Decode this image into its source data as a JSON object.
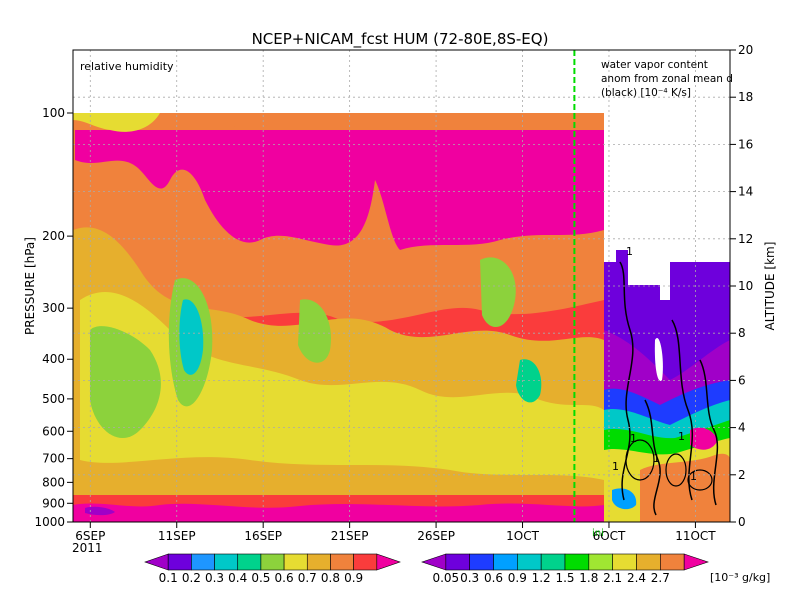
{
  "chart_data": {
    "type": "heatmap",
    "title": "NCEP+NICAM_fcst HUM (72-80E,8S-EQ)",
    "panel_left_label": "relative humidity",
    "panel_right_label": "water vapor content anom from zonal mean dh(black) [10⁻⁴ K/s]",
    "ylabel_left": "PRESSURE [hPa]",
    "ylabel_right": "ALTITUDE [km]",
    "y_left_ticks": [
      "100",
      "200",
      "300",
      "400",
      "500",
      "600",
      "700",
      "800",
      "900",
      "1000"
    ],
    "y_left_values": [
      100,
      200,
      300,
      400,
      500,
      600,
      700,
      800,
      900,
      1000
    ],
    "y_right_ticks": [
      "0",
      "2",
      "4",
      "6",
      "8",
      "10",
      "12",
      "14",
      "16",
      "18",
      "20"
    ],
    "y_right_range": [
      0,
      20
    ],
    "x_ticks": [
      "6SEP",
      "11SEP",
      "16SEP",
      "21SEP",
      "26SEP",
      "1OCT",
      "6OCT",
      "11OCT"
    ],
    "x_year_label": "2011",
    "x_range": [
      "2011-09-05",
      "2011-10-13"
    ],
    "init_date": "2011-10-04",
    "init_label": "ini",
    "contour_labels": [
      "1",
      "1",
      "1",
      "1",
      "1",
      "1"
    ],
    "grid": true,
    "colorbar_left": {
      "labels": [
        "0.1",
        "0.2",
        "0.3",
        "0.4",
        "0.5",
        "0.6",
        "0.7",
        "0.8",
        "0.9"
      ],
      "colors": [
        "#a000c8",
        "#6e00dc",
        "#1e96ff",
        "#00c8c8",
        "#00d28c",
        "#8cd23c",
        "#e6dc32",
        "#e6af2d",
        "#f0823c",
        "#fa3c3c",
        "#f000a0"
      ]
    },
    "colorbar_right": {
      "labels": [
        "0.05",
        "0.3",
        "0.6",
        "0.9",
        "1.2",
        "1.5",
        "1.8",
        "2.1",
        "2.4",
        "2.7"
      ],
      "unit": "[10⁻³ g/kg]",
      "colors": [
        "#a000c8",
        "#6e00dc",
        "#1e3cff",
        "#00a0ff",
        "#00c8c8",
        "#00d28c",
        "#00dc00",
        "#a0e632",
        "#e6dc32",
        "#e6af2d",
        "#f0823c",
        "#f000a0"
      ]
    }
  }
}
